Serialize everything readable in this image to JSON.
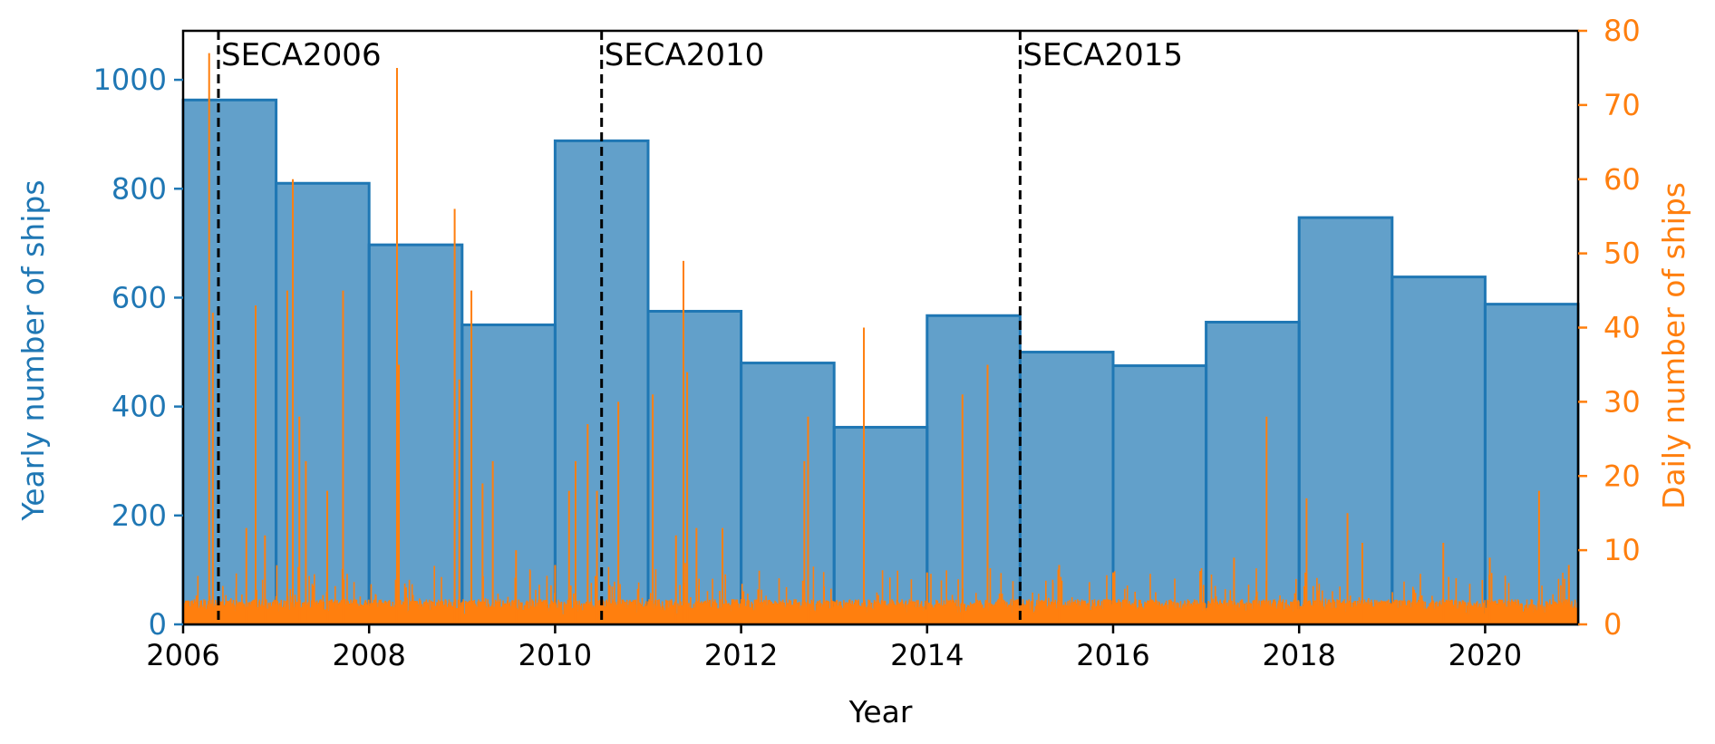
{
  "chart_data": {
    "type": "bar",
    "xlabel": "Year",
    "ylabel": "Yearly number of ships",
    "y2label": "Daily number of ships",
    "xlim": [
      2006,
      2021
    ],
    "ylim": [
      0,
      1090
    ],
    "y2lim": [
      0,
      80
    ],
    "xticks": [
      2006,
      2008,
      2010,
      2012,
      2014,
      2016,
      2018,
      2020
    ],
    "yticks": [
      0,
      200,
      400,
      600,
      800,
      1000
    ],
    "y2ticks": [
      0,
      10,
      20,
      30,
      40,
      50,
      60,
      70,
      80
    ],
    "grid": false,
    "colors": {
      "bars": "#1f77b4",
      "daily": "#ff7f0e",
      "events": "#000000"
    },
    "series": [
      {
        "kind": "bar",
        "axis": "left",
        "categories": [
          2006,
          2007,
          2008,
          2009,
          2010,
          2011,
          2012,
          2013,
          2014,
          2015,
          2016,
          2017,
          2018,
          2019,
          2020
        ],
        "values": [
          963,
          810,
          697,
          550,
          888,
          575,
          480,
          362,
          567,
          500,
          475,
          555,
          747,
          638,
          588
        ]
      },
      {
        "kind": "spikes",
        "axis": "right",
        "x": [
          2006.28,
          2006.32,
          2006.78,
          2006.88,
          2006.68,
          2007.12,
          2007.18,
          2007.25,
          2007.32,
          2007.55,
          2007.72,
          2008.3,
          2008.32,
          2008.92,
          2008.97,
          2009.1,
          2009.22,
          2009.33,
          2009.58,
          2010.0,
          2010.15,
          2010.22,
          2010.35,
          2010.45,
          2010.68,
          2011.05,
          2011.3,
          2011.38,
          2011.42,
          2011.52,
          2011.8,
          2012.68,
          2012.72,
          2013.32,
          2014.0,
          2014.38,
          2014.65,
          2015.42,
          2016.0,
          2017.3,
          2017.65,
          2018.08,
          2018.52,
          2018.68,
          2019.55,
          2020.05,
          2020.58,
          2020.9
        ],
        "values": [
          77,
          42,
          43,
          12,
          13,
          45,
          60,
          28,
          22,
          18,
          45,
          75,
          35,
          56,
          33,
          45,
          19,
          22,
          10,
          8,
          18,
          22,
          27,
          18,
          30,
          31,
          12,
          49,
          34,
          13,
          13,
          22,
          28,
          40,
          7,
          31,
          35,
          8,
          7,
          9,
          28,
          17,
          15,
          11,
          11,
          9,
          18,
          8
        ],
        "baseline_level": 2
      }
    ],
    "annotations": [
      {
        "x": 2006.38,
        "label": "SECA2006"
      },
      {
        "x": 2010.5,
        "label": "SECA2010"
      },
      {
        "x": 2015.0,
        "label": "SECA2015"
      }
    ]
  }
}
